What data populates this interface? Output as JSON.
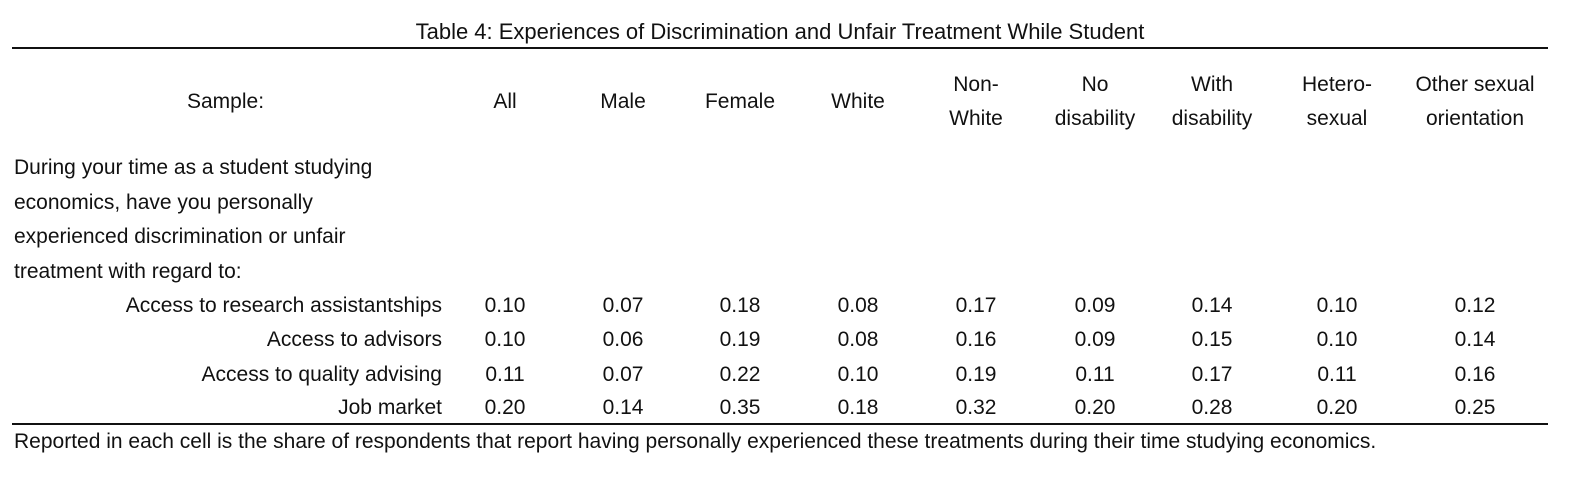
{
  "table": {
    "title": "Table 4: Experiences of Discrimination and Unfair Treatment While Student",
    "sample_label": "Sample:",
    "columns": [
      {
        "lines": [
          "All"
        ]
      },
      {
        "lines": [
          "Male"
        ]
      },
      {
        "lines": [
          "Female"
        ]
      },
      {
        "lines": [
          "White"
        ]
      },
      {
        "lines": [
          "Non-",
          "White"
        ]
      },
      {
        "lines": [
          "No",
          "disability"
        ]
      },
      {
        "lines": [
          "With",
          "disability"
        ]
      },
      {
        "lines": [
          "Hetero-",
          "sexual"
        ]
      },
      {
        "lines": [
          "Other sexual",
          "orientation"
        ]
      }
    ],
    "question_lines": [
      "During your time as a student studying",
      "economics, have you personally",
      "experienced discrimination or unfair",
      "treatment with regard to:"
    ],
    "rows": [
      {
        "label": "Access to research assistantships",
        "values": [
          "0.10",
          "0.07",
          "0.18",
          "0.08",
          "0.17",
          "0.09",
          "0.14",
          "0.10",
          "0.12"
        ]
      },
      {
        "label": "Access to advisors",
        "values": [
          "0.10",
          "0.06",
          "0.19",
          "0.08",
          "0.16",
          "0.09",
          "0.15",
          "0.10",
          "0.14"
        ]
      },
      {
        "label": "Access to quality advising",
        "values": [
          "0.11",
          "0.07",
          "0.22",
          "0.10",
          "0.19",
          "0.11",
          "0.17",
          "0.11",
          "0.16"
        ]
      },
      {
        "label": "Job market",
        "values": [
          "0.20",
          "0.14",
          "0.35",
          "0.18",
          "0.32",
          "0.20",
          "0.28",
          "0.20",
          "0.25"
        ]
      }
    ],
    "note": "Reported in each cell is the share of respondents that report having personally experienced these treatments during their time studying economics."
  }
}
